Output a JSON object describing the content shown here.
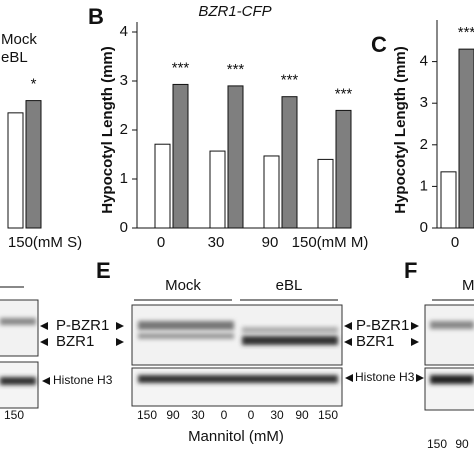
{
  "chart_data": [
    {
      "type": "bar",
      "categories": [
        "150(mM S)"
      ],
      "series": [
        {
          "name": "Mock",
          "color": "#ffffff",
          "values": [
            2.35
          ]
        },
        {
          "name": "eBL",
          "color": "#7f7f7f",
          "values": [
            2.6
          ]
        }
      ],
      "annotations": [
        "*"
      ],
      "ylim": [
        0,
        4
      ]
    },
    {
      "type": "bar",
      "panel": "B",
      "title": "BZR1-CFP",
      "ylabel": "Hypocotyl Length (mm)",
      "categories": [
        "0",
        "30",
        "90",
        "150(mM M)"
      ],
      "series": [
        {
          "color": "#ffffff",
          "values": [
            1.71,
            1.57,
            1.47,
            1.4
          ]
        },
        {
          "color": "#7f7f7f",
          "values": [
            2.93,
            2.9,
            2.68,
            2.4
          ]
        }
      ],
      "annotations": [
        "***",
        "***",
        "***",
        "***"
      ],
      "ylim": [
        0,
        4
      ],
      "yticks": [
        0,
        1,
        2,
        3,
        4
      ]
    },
    {
      "type": "bar",
      "panel": "C",
      "ylabel": "Hypocotyl Length (mm)",
      "categories": [
        "0"
      ],
      "series": [
        {
          "color": "#ffffff",
          "values": [
            1.35
          ]
        },
        {
          "color": "#7f7f7f",
          "values": [
            4.3
          ]
        }
      ],
      "annotations": [
        "***"
      ],
      "ylim": [
        0,
        5
      ],
      "yticks": [
        0,
        1,
        2,
        3,
        4
      ]
    }
  ],
  "blots": {
    "left": {
      "labels": [
        "P-BZR1",
        "BZR1",
        "Histone H3"
      ],
      "lanes": [
        "150"
      ]
    },
    "E": {
      "panel": "E",
      "groups": [
        "Mock",
        "eBL"
      ],
      "labels": [
        "P-BZR1",
        "BZR1",
        "Histone H3"
      ],
      "lanes": [
        "150",
        "90",
        "30",
        "0",
        "0",
        "30",
        "90",
        "150"
      ],
      "xlabel": "Mannitol (mM)"
    },
    "F": {
      "panel": "F",
      "groups": [
        "M"
      ],
      "lanes": [
        "150",
        "90"
      ]
    }
  }
}
